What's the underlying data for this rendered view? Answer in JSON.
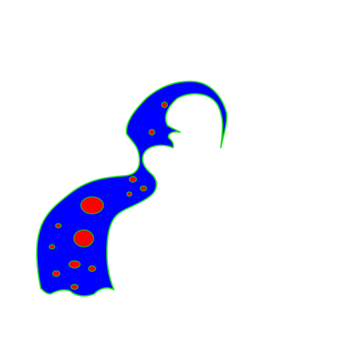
{
  "scene": {
    "subject": "blob-creature-silhouette",
    "colors": {
      "background": "#ffffff",
      "body_fill": "#0000ff",
      "body_outline": "#22dd22",
      "spot_fill": "#ff0000",
      "spot_outline": "#22aa22"
    },
    "spot_count": 14
  }
}
